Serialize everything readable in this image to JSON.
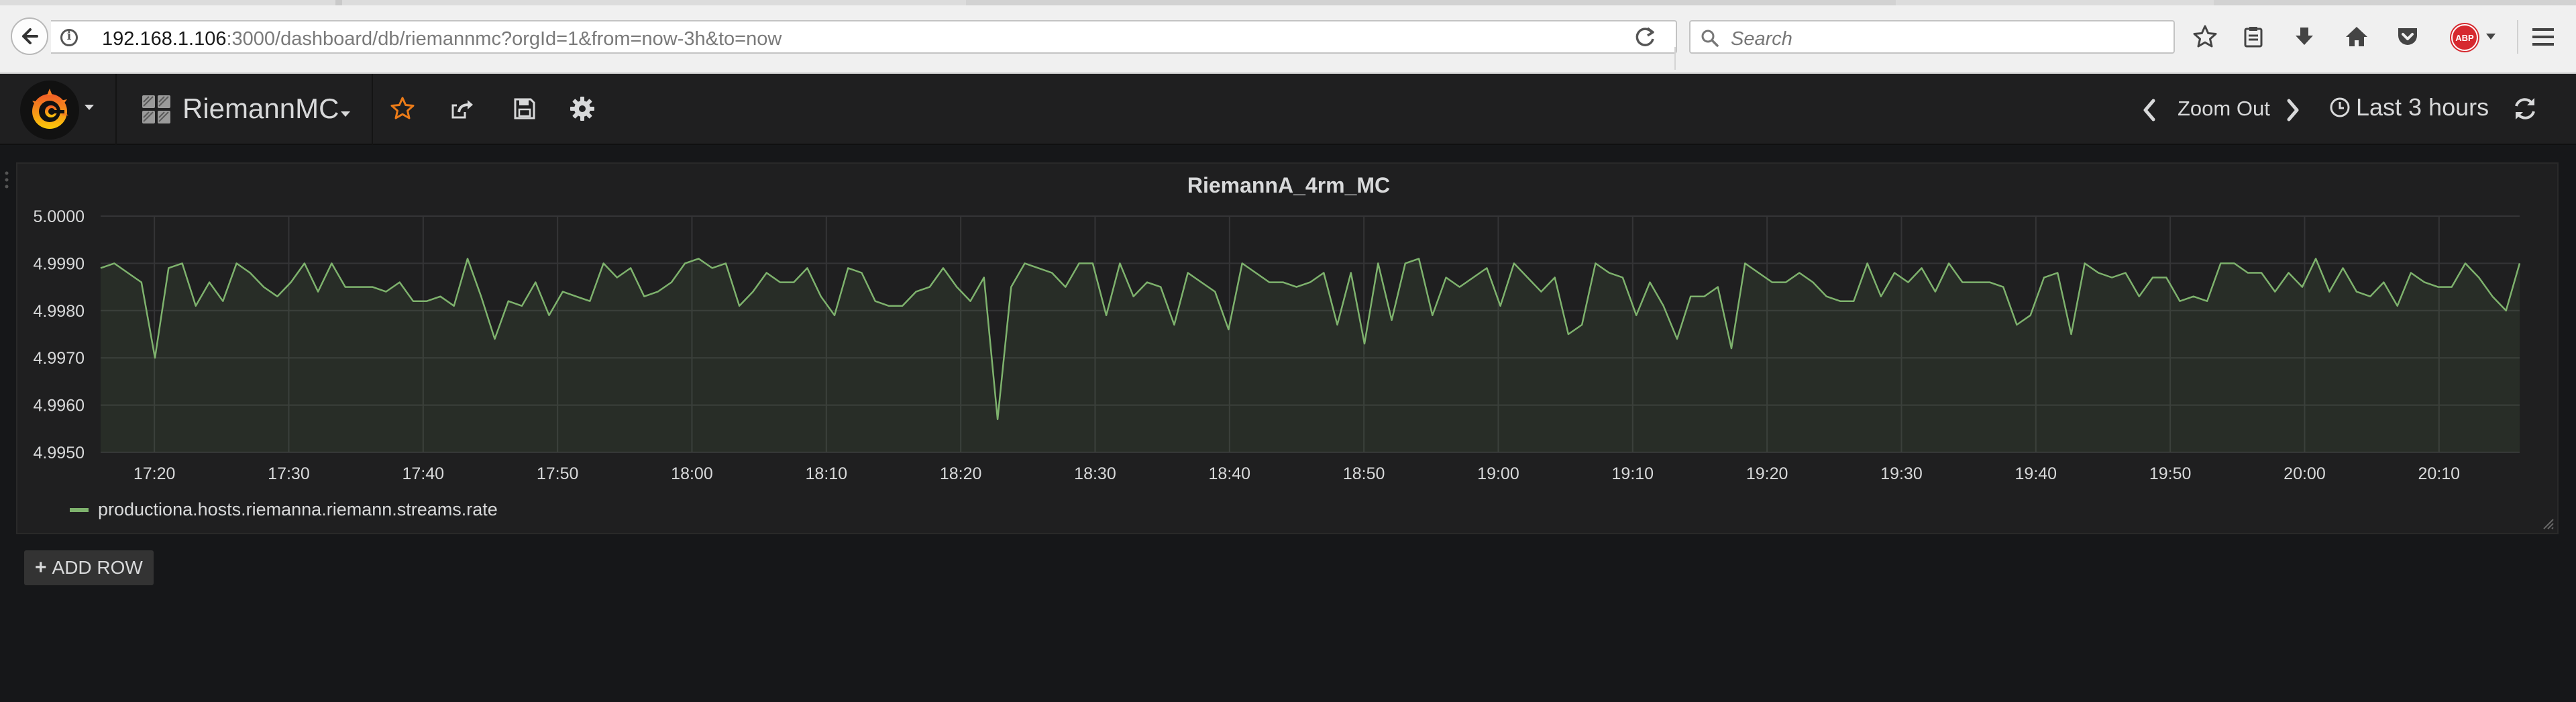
{
  "browser": {
    "url_host": "192.168.1.106",
    "url_rest": ":3000/dashboard/db/riemannmc?orgId=1&from=now-3h&to=now",
    "search_placeholder": "Search",
    "adblock_label": "ABP"
  },
  "navbar": {
    "dashboard_title": "RiemannMC",
    "zoom_out_label": "Zoom Out",
    "time_range_label": "Last 3 hours"
  },
  "panel": {
    "title": "RiemannA_4rm_MC",
    "legend_label": "productiona.hosts.riemanna.riemann.streams.rate"
  },
  "add_row_label": "ADD ROW",
  "colors": {
    "series": "#7eb26d",
    "background": "#161719",
    "panel": "#1f1f20",
    "text": "#d8d9da",
    "star": "#eb7b18"
  },
  "chart_data": {
    "type": "line",
    "title": "RiemannA_4rm_MC",
    "ylim": [
      4.995,
      5.0
    ],
    "y_ticks": [
      "5.0000",
      "4.9990",
      "4.9980",
      "4.9970",
      "4.9960",
      "4.9950"
    ],
    "x_ticks": [
      "17:20",
      "17:30",
      "17:40",
      "17:50",
      "18:00",
      "18:10",
      "18:20",
      "18:30",
      "18:40",
      "18:50",
      "19:00",
      "19:10",
      "19:20",
      "19:30",
      "19:40",
      "19:50",
      "20:00",
      "20:10"
    ],
    "x_range": [
      "17:16",
      "20:16"
    ],
    "grid": true,
    "legend_position": "bottom-left",
    "series": [
      {
        "name": "productiona.hosts.riemanna.riemann.streams.rate",
        "color": "#7eb26d",
        "fill": true,
        "values": [
          4.9989,
          4.999,
          4.9988,
          4.9986,
          4.997,
          4.9989,
          4.999,
          4.9981,
          4.9986,
          4.9982,
          4.999,
          4.9988,
          4.9985,
          4.9983,
          4.9986,
          4.999,
          4.9984,
          4.999,
          4.9985,
          4.9985,
          4.9985,
          4.9984,
          4.9986,
          4.9982,
          4.9982,
          4.9983,
          4.9981,
          4.9991,
          4.9983,
          4.9974,
          4.9982,
          4.9981,
          4.9986,
          4.9979,
          4.9984,
          4.9983,
          4.9982,
          4.999,
          4.9987,
          4.9989,
          4.9983,
          4.9984,
          4.9986,
          4.999,
          4.9991,
          4.9989,
          4.999,
          4.9981,
          4.9984,
          4.9988,
          4.9986,
          4.9986,
          4.9989,
          4.9983,
          4.9979,
          4.9989,
          4.9988,
          4.9982,
          4.9981,
          4.9981,
          4.9984,
          4.9985,
          4.9989,
          4.9985,
          4.9982,
          4.9987,
          4.9957,
          4.9985,
          4.999,
          4.9989,
          4.9988,
          4.9985,
          4.999,
          4.999,
          4.9979,
          4.999,
          4.9983,
          4.9986,
          4.9985,
          4.9977,
          4.9988,
          4.9986,
          4.9984,
          4.9976,
          4.999,
          4.9988,
          4.9986,
          4.9986,
          4.9985,
          4.9986,
          4.9988,
          4.9977,
          4.9988,
          4.9973,
          4.999,
          4.9978,
          4.999,
          4.9991,
          4.9979,
          4.9987,
          4.9985,
          4.9987,
          4.9989,
          4.9981,
          4.999,
          4.9987,
          4.9984,
          4.9987,
          4.9975,
          4.9977,
          4.999,
          4.9988,
          4.9987,
          4.9979,
          4.9986,
          4.9981,
          4.9974,
          4.9983,
          4.9983,
          4.9985,
          4.9972,
          4.999,
          4.9988,
          4.9986,
          4.9986,
          4.9988,
          4.9986,
          4.9983,
          4.9982,
          4.9982,
          4.999,
          4.9983,
          4.9988,
          4.9986,
          4.9989,
          4.9984,
          4.999,
          4.9986,
          4.9986,
          4.9986,
          4.9985,
          4.9977,
          4.9979,
          4.9987,
          4.9988,
          4.9975,
          4.999,
          4.9988,
          4.9987,
          4.9988,
          4.9983,
          4.9987,
          4.9987,
          4.9982,
          4.9983,
          4.9982,
          4.999,
          4.999,
          4.9988,
          4.9988,
          4.9984,
          4.9988,
          4.9985,
          4.9991,
          4.9984,
          4.9989,
          4.9984,
          4.9983,
          4.9986,
          4.9981,
          4.9988,
          4.9986,
          4.9985,
          4.9985,
          4.999,
          4.9987,
          4.9983,
          4.998,
          4.999
        ]
      }
    ]
  }
}
